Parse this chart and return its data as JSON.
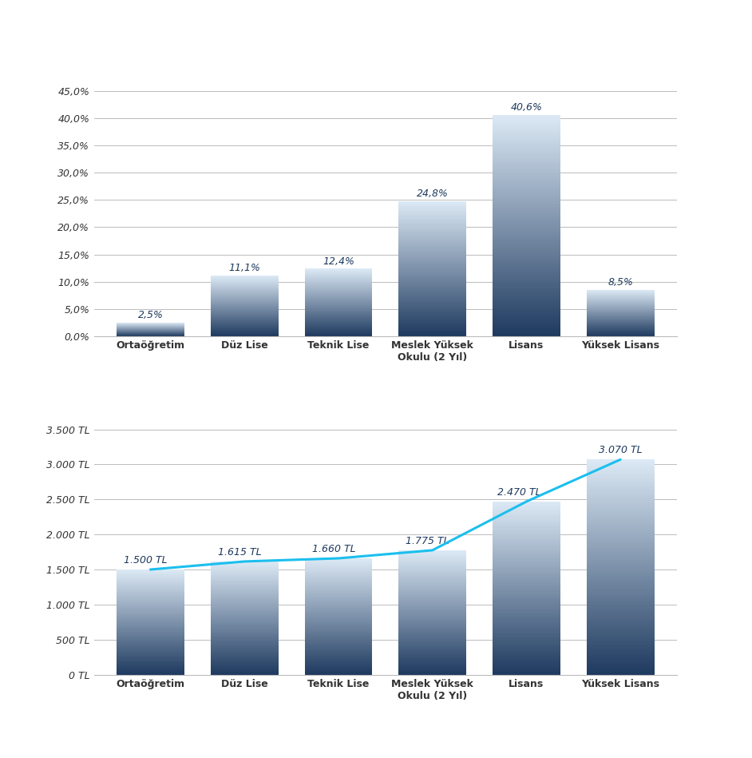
{
  "categories": [
    "Ortaöğretim",
    "Düz Lise",
    "Teknik Lise",
    "Meslek Yüksek\nOkulu (2 Yıl)",
    "Lisans",
    "Yüksek Lisans"
  ],
  "bar_values_pct": [
    2.5,
    11.1,
    12.4,
    24.8,
    40.6,
    8.5
  ],
  "bar_labels_pct": [
    "2,5%",
    "11,1%",
    "12,4%",
    "24,8%",
    "40,6%",
    "8,5%"
  ],
  "bar_values_tl": [
    1500,
    1615,
    1660,
    1775,
    2470,
    3070
  ],
  "bar_labels_tl": [
    "1.500 TL",
    "1.615 TL",
    "1.660 TL",
    "1.775 TL",
    "2.470 TL",
    "3.070 TL"
  ],
  "yticks_pct": [
    0.0,
    5.0,
    10.0,
    15.0,
    20.0,
    25.0,
    30.0,
    35.0,
    40.0,
    45.0
  ],
  "ytick_labels_pct": [
    "0,0%",
    "5,0%",
    "10,0%",
    "15,0%",
    "20,0%",
    "25,0%",
    "30,0%",
    "35,0%",
    "40,0%",
    "45,0%"
  ],
  "yticks_tl": [
    0,
    500,
    1000,
    1500,
    2000,
    2500,
    3000,
    3500
  ],
  "ytick_labels_tl": [
    "0 TL",
    "500 TL",
    "1.000 TL",
    "1.500 TL",
    "2.000 TL",
    "2.500 TL",
    "3.000 TL",
    "3.500 TL"
  ],
  "line_color": "#1BBFEE",
  "bar_color_top": "#dce9f5",
  "bar_color_bottom": "#1e3a5f",
  "bg_color": "#ffffff",
  "grid_color": "#bbbbbb",
  "label_color": "#1e3a5f",
  "axis_label_color": "#333333",
  "bar_width": 0.72,
  "label_fontsize": 9,
  "tick_fontsize": 9
}
